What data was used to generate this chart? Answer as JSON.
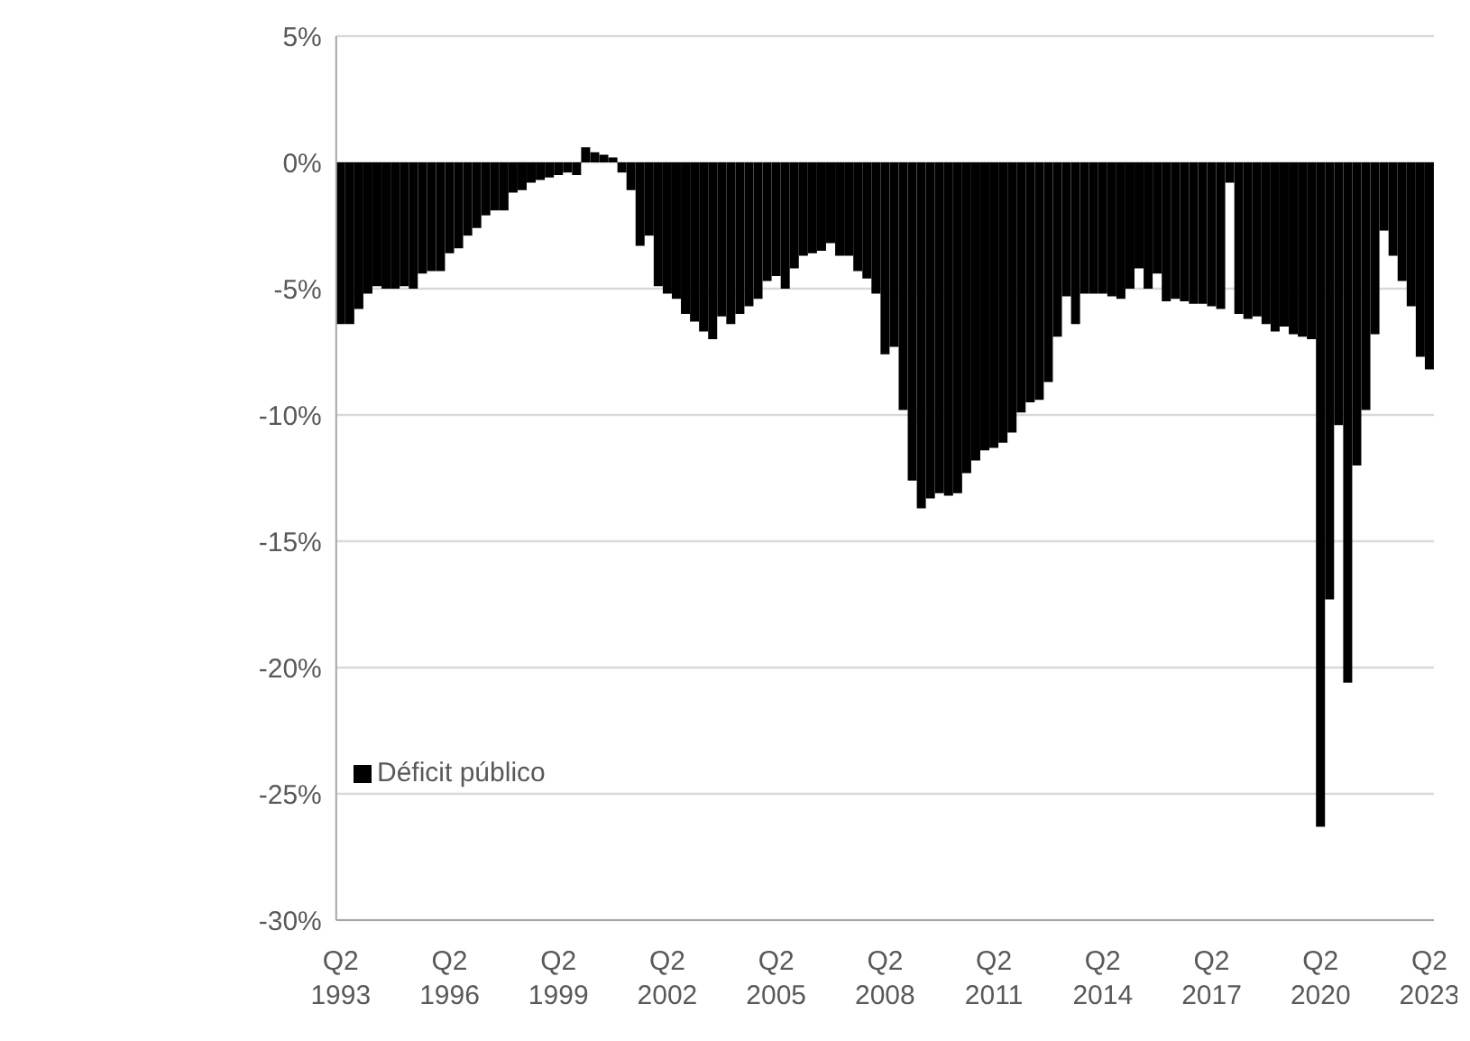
{
  "chart_data": {
    "type": "bar",
    "categories": [
      "Q2 1993",
      null,
      null,
      null,
      null,
      null,
      null,
      null,
      null,
      null,
      null,
      null,
      "Q2 1996",
      null,
      null,
      null,
      null,
      null,
      null,
      null,
      null,
      null,
      null,
      null,
      "Q2 1999",
      null,
      null,
      null,
      null,
      null,
      null,
      null,
      null,
      null,
      null,
      null,
      "Q2 2002",
      null,
      null,
      null,
      null,
      null,
      null,
      null,
      null,
      null,
      null,
      null,
      "Q2 2005",
      null,
      null,
      null,
      null,
      null,
      null,
      null,
      null,
      null,
      null,
      null,
      "Q2 2008",
      null,
      null,
      null,
      null,
      null,
      null,
      null,
      null,
      null,
      null,
      null,
      "Q2 2011",
      null,
      null,
      null,
      null,
      null,
      null,
      null,
      null,
      null,
      null,
      null,
      "Q2 2014",
      null,
      null,
      null,
      null,
      null,
      null,
      null,
      null,
      null,
      null,
      null,
      "Q2 2017",
      null,
      null,
      null,
      null,
      null,
      null,
      null,
      null,
      null,
      null,
      null,
      "Q2 2020",
      null,
      null,
      null,
      null,
      null,
      null,
      null,
      null,
      null,
      null,
      null,
      "Q2 2023"
    ],
    "series": [
      {
        "name": "Déficit público",
        "color": "#000000",
        "values": [
          -6.4,
          -6.4,
          -5.8,
          -5.2,
          -4.9,
          -5.0,
          -5.0,
          -4.9,
          -5.0,
          -4.4,
          -4.3,
          -4.3,
          -3.6,
          -3.4,
          -2.9,
          -2.6,
          -2.1,
          -1.9,
          -1.9,
          -1.2,
          -1.1,
          -0.8,
          -0.7,
          -0.6,
          -0.5,
          -0.4,
          -0.5,
          0.6,
          0.4,
          0.3,
          0.2,
          -0.4,
          -1.1,
          -3.3,
          -2.9,
          -4.9,
          -5.2,
          -5.4,
          -6.0,
          -6.3,
          -6.7,
          -7.0,
          -6.1,
          -6.4,
          -6.0,
          -5.7,
          -5.4,
          -4.7,
          -4.5,
          -5.0,
          -4.2,
          -3.7,
          -3.6,
          -3.5,
          -3.2,
          -3.7,
          -3.7,
          -4.3,
          -4.6,
          -5.2,
          -7.6,
          -7.3,
          -9.8,
          -12.6,
          -13.7,
          -13.3,
          -13.1,
          -13.2,
          -13.1,
          -12.3,
          -11.8,
          -11.4,
          -11.3,
          -11.1,
          -10.7,
          -9.9,
          -9.5,
          -9.4,
          -8.7,
          -6.9,
          -5.3,
          -6.4,
          -5.2,
          -5.2,
          -5.2,
          -5.3,
          -5.4,
          -5.0,
          -4.2,
          -5.0,
          -4.4,
          -5.5,
          -5.4,
          -5.5,
          -5.6,
          -5.6,
          -5.7,
          -5.8,
          -0.8,
          -6.0,
          -6.2,
          -6.1,
          -6.4,
          -6.7,
          -6.5,
          -6.8,
          -6.9,
          -7.0,
          -26.3,
          -17.3,
          -10.4,
          -20.6,
          -12.0,
          -9.8,
          -6.8,
          -2.7,
          -3.7,
          -4.7,
          -5.7,
          -7.7,
          -8.2
        ]
      }
    ],
    "ylim": [
      -30,
      5
    ],
    "yticks": [
      {
        "value": 5,
        "label": "5%"
      },
      {
        "value": 0,
        "label": "0%"
      },
      {
        "value": -5,
        "label": "-5%"
      },
      {
        "value": -10,
        "label": "-10%"
      },
      {
        "value": -15,
        "label": "-15%"
      },
      {
        "value": -20,
        "label": "-20%"
      },
      {
        "value": -25,
        "label": "-25%"
      },
      {
        "value": -30,
        "label": "-30%"
      }
    ],
    "grid": "y",
    "legend": "bottom left"
  }
}
